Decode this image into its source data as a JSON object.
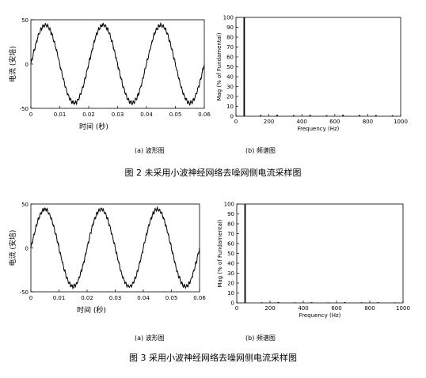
{
  "figures": [
    {
      "caption": "图 2 未采用小波神经网络去噪网侧电流采样图",
      "waveform_subcaption": "(a) 波形图",
      "spectrum_subcaption": "(b) 频谱图"
    },
    {
      "caption": "图 3 采用小波神经网络去噪网侧电流采样图",
      "waveform_subcaption": "(a) 波形图",
      "spectrum_subcaption": "(b) 频谱图"
    }
  ],
  "chart_data": [
    {
      "type": "line",
      "xlabel": "时间 (秒)",
      "ylabel": "电流 (安培)",
      "xlim": [
        0,
        0.06
      ],
      "ylim": [
        -50,
        50
      ],
      "x_ticks": [
        "0",
        "0.01",
        "0.02",
        "0.03",
        "0.04",
        "0.05",
        "0.06"
      ],
      "y_ticks": [
        "50",
        "0",
        "-50"
      ],
      "x": [
        0,
        0.005,
        0.01,
        0.015,
        0.02,
        0.025,
        0.03,
        0.035,
        0.04,
        0.045,
        0.05,
        0.055,
        0.06
      ],
      "values": [
        0,
        44,
        0,
        -44,
        0,
        44,
        0,
        -44,
        0,
        44,
        0,
        -44,
        0
      ],
      "noisy": true
    },
    {
      "type": "bar",
      "xlabel": "Frequency (Hz)",
      "ylabel": "Mag (% of Fundamental)",
      "xlim": [
        0,
        1000
      ],
      "ylim": [
        0,
        100
      ],
      "x_ticks": [
        "0",
        "200",
        "400",
        "600",
        "800",
        "1000"
      ],
      "y_ticks": [
        "100",
        "90",
        "80",
        "70",
        "60",
        "50",
        "40",
        "30",
        "20",
        "10",
        "0"
      ],
      "x": [
        50,
        150,
        250,
        350,
        450,
        550,
        650,
        750,
        850,
        950
      ],
      "values": [
        100,
        1.2,
        1.5,
        1.1,
        1.4,
        1.0,
        1.6,
        1.2,
        1.3,
        1.0
      ]
    },
    {
      "type": "line",
      "xlabel": "时间 (秒)",
      "ylabel": "电流 (安培)",
      "xlim": [
        0,
        0.06
      ],
      "ylim": [
        -50,
        50
      ],
      "x_ticks": [
        "0",
        "0.01",
        "0.02",
        "0.03",
        "0.04",
        "0.05",
        "0.06"
      ],
      "y_ticks": [
        "50",
        "0",
        "-50"
      ],
      "x": [
        0,
        0.005,
        0.01,
        0.015,
        0.02,
        0.025,
        0.03,
        0.035,
        0.04,
        0.045,
        0.05,
        0.055,
        0.06
      ],
      "values": [
        0,
        44,
        0,
        -44,
        0,
        44,
        0,
        -44,
        0,
        44,
        0,
        -44,
        0
      ],
      "noisy": true
    },
    {
      "type": "bar",
      "xlabel": "Frequency (Hz)",
      "ylabel": "Mag (% of Fundamental)",
      "xlim": [
        0,
        1000
      ],
      "ylim": [
        0,
        100
      ],
      "x_ticks": [
        "0",
        "200",
        "400",
        "600",
        "800",
        "1000"
      ],
      "y_ticks": [
        "100",
        "90",
        "80",
        "70",
        "60",
        "50",
        "40",
        "30",
        "20",
        "10",
        "0"
      ],
      "x": [
        50,
        150,
        250,
        350,
        450,
        550,
        650,
        750,
        850,
        950
      ],
      "values": [
        100,
        0.6,
        0.8,
        0.5,
        0.7,
        0.5,
        0.8,
        0.6,
        0.7,
        0.5
      ]
    }
  ]
}
